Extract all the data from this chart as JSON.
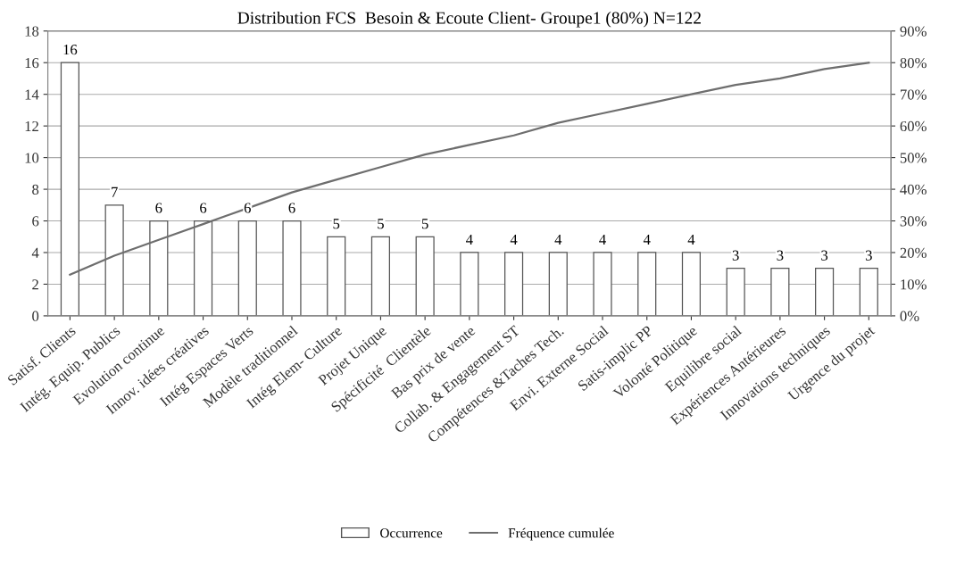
{
  "chart_data": {
    "type": "bar",
    "title": "Distribution FCS  Besoin & Ecoute Client- Groupe1 (80%) N=122",
    "categories": [
      "Satisf. Clients",
      "Intég. Equip. Publics",
      "Evolution continue",
      "Innov. idées créatives",
      "Intég Espaces Verts",
      "Modèle traditionnel",
      "Intég Elem- Culture",
      "Projet Unique",
      "Spécificité  Clientèle",
      "Bas prix de vente",
      "Collab. & Engagement ST",
      "Compétences &Taches Tech.",
      "Envi. Externe Social",
      "Satis-implic PP",
      "Volonté Politique",
      "Equilibre social",
      "Expériences Antérieures",
      "Innovations techniques",
      "Urgence du projet"
    ],
    "series": [
      {
        "name": "Occurrence",
        "color": "#ffffff",
        "values": [
          16,
          7,
          6,
          6,
          6,
          6,
          5,
          5,
          5,
          4,
          4,
          4,
          4,
          4,
          4,
          3,
          3,
          3,
          3
        ],
        "value_labels": [
          "16",
          "7",
          "6",
          "6",
          "6",
          "6",
          "5",
          "5",
          "5",
          "4",
          "4",
          "4",
          "4",
          "4",
          "4",
          "3",
          "3",
          "3",
          "3"
        ]
      },
      {
        "name": "Fréquence cumulée",
        "type": "line",
        "axis": "y2",
        "color": "#6e6e6e",
        "values": [
          13,
          19,
          24,
          29,
          34,
          39,
          43,
          47,
          51,
          54,
          57,
          61,
          64,
          67,
          70,
          73,
          75,
          78,
          80
        ]
      }
    ],
    "ylim": [
      0,
      18
    ],
    "yticks": [
      0,
      2,
      4,
      6,
      8,
      10,
      12,
      14,
      16,
      18
    ],
    "y2lim": [
      0,
      90
    ],
    "y2ticks": [
      {
        "value": 0,
        "label": "0%"
      },
      {
        "value": 10,
        "label": "10%"
      },
      {
        "value": 20,
        "label": "20%"
      },
      {
        "value": 30,
        "label": "30%"
      },
      {
        "value": 40,
        "label": "40%"
      },
      {
        "value": 50,
        "label": "50%"
      },
      {
        "value": 60,
        "label": "60%"
      },
      {
        "value": 70,
        "label": "70%"
      },
      {
        "value": 80,
        "label": "80%"
      },
      {
        "value": 90,
        "label": "90%"
      }
    ],
    "grid": "y",
    "legend": "bottom"
  }
}
